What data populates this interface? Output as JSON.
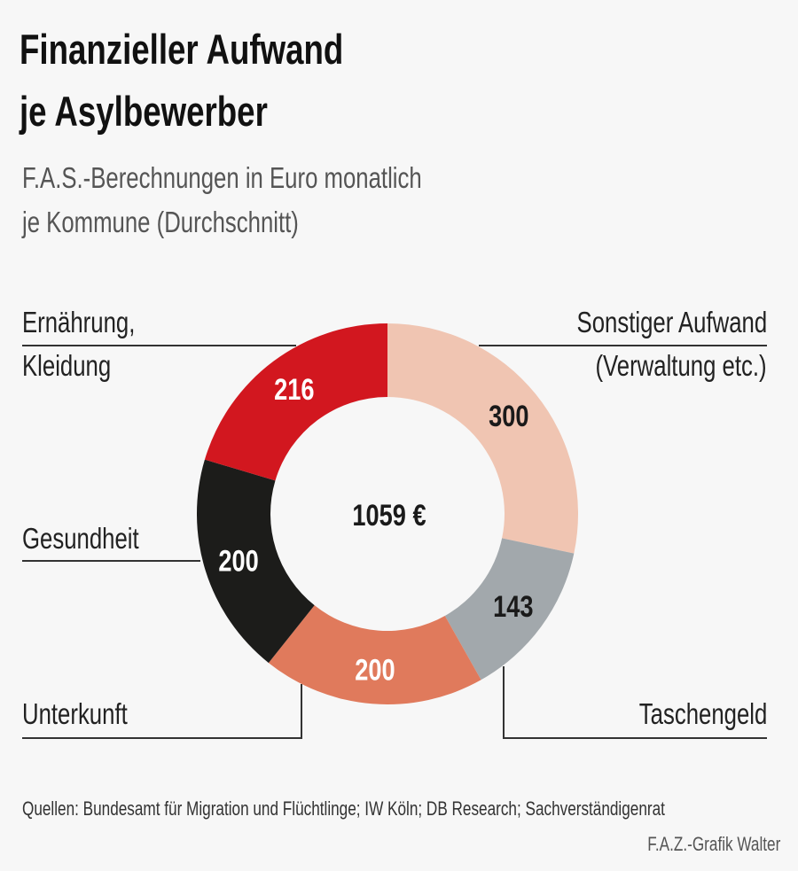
{
  "title_lines": [
    "Finanzieller Aufwand",
    "je Asylbewerber"
  ],
  "subtitle_lines": [
    "F.A.S.-Berechnungen in Euro monatlich",
    "je Kommune (Durchschnitt)"
  ],
  "footer": {
    "sources": "Quellen: Bundesamt für Migration und Flüchtlinge; IW Köln; DB Research; Sachverständigenrat",
    "credit": "F.A.Z.-Grafik Walter"
  },
  "chart_data": {
    "type": "pie",
    "variant": "donut",
    "title": "Finanzieller Aufwand je Asylbewerber",
    "center_label": "1059 €",
    "total": 1059,
    "unit": "Euro monatlich",
    "start": "top, clockwise",
    "slices": [
      {
        "label_lines": [
          "Sonstiger Aufwand",
          "(Verwaltung etc.)"
        ],
        "value": 300,
        "value_label": "300",
        "color": "#f0c5b2",
        "text_color": "#1a1a1a"
      },
      {
        "label_lines": [
          "Taschengeld"
        ],
        "value": 143,
        "value_label": "143",
        "color": "#a2a8ac",
        "text_color": "#1a1a1a"
      },
      {
        "label_lines": [
          "Unterkunft"
        ],
        "value": 200,
        "value_label": "200",
        "color": "#e07a5c",
        "text_color": "#ffffff"
      },
      {
        "label_lines": [
          "Gesundheit"
        ],
        "value": 200,
        "value_label": "200",
        "color": "#1c1c1a",
        "text_color": "#ffffff"
      },
      {
        "label_lines": [
          "Ernährung,",
          "Kleidung"
        ],
        "value": 216,
        "value_label": "216",
        "color": "#d2171f",
        "text_color": "#ffffff"
      }
    ]
  }
}
